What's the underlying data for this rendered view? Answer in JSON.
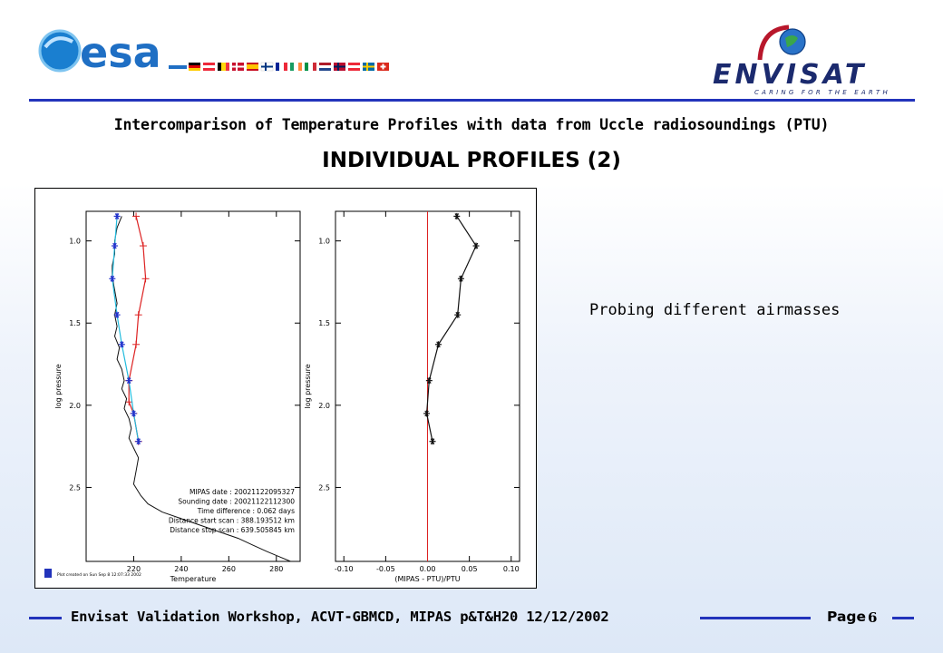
{
  "header": {
    "left_logo": "esa-logo",
    "left_logo_text": "esa",
    "right_logo": "envisat-logo",
    "right_logo_text": "ENVISAT",
    "right_logo_tagline": "CARING FOR THE EARTH"
  },
  "title": "Intercomparison of Temperature Profiles with data from Uccle radiosoundings (PTU)",
  "subtitle": "INDIVIDUAL PROFILES (2)",
  "side_note": "Probing different airmasses",
  "footer": {
    "text": "Envisat Validation Workshop, ACVT-GBMCD,  MIPAS p&T&H20 12/12/2002",
    "page_label": "Page",
    "page_number": "6"
  },
  "colors": {
    "rule": "#2233bb",
    "mipas_profile": "#dd2222",
    "sounding_profile": "#111111",
    "interpolated": "#22bbdd",
    "markers": "#2233cc"
  },
  "chart_data": [
    {
      "type": "line",
      "xlabel": "Temperature",
      "ylabel": "log pressure",
      "xticks": [
        220,
        240,
        260,
        280
      ],
      "yticks": [
        1.0,
        1.5,
        2.0,
        2.5
      ],
      "xlim": [
        200,
        290
      ],
      "ylim": [
        2.95,
        0.82
      ],
      "annotation_lines": [
        "MIPAS date : 20021122095327",
        "Sounding date : 20021122112300",
        "Time difference : 0.062 days",
        "Distance start scan : 388.193512 km",
        "Distance stop scan : 639.505845 km"
      ],
      "credit": "Plot created on Sun Sep 8 12:07:33 2002",
      "series": [
        {
          "color": "#dd2222",
          "marker": "+",
          "x": [
            221,
            224,
            225,
            222,
            221,
            218,
            218,
            220,
            222
          ],
          "y": [
            0.85,
            1.03,
            1.23,
            1.45,
            1.63,
            1.85,
            1.98,
            2.05,
            2.22
          ]
        },
        {
          "color": "#111111",
          "marker": "none",
          "x": [
            215,
            213,
            212,
            212,
            211,
            211,
            212,
            213,
            212,
            213,
            212,
            214,
            213,
            215,
            216,
            215,
            217,
            216,
            218,
            219,
            218,
            220,
            222,
            221,
            220,
            223,
            226,
            232,
            240,
            248,
            256,
            264,
            270,
            276,
            281,
            286
          ],
          "y": [
            0.85,
            0.92,
            1.0,
            1.08,
            1.15,
            1.22,
            1.3,
            1.38,
            1.45,
            1.52,
            1.58,
            1.65,
            1.72,
            1.78,
            1.85,
            1.9,
            1.96,
            2.02,
            2.08,
            2.14,
            2.2,
            2.26,
            2.32,
            2.4,
            2.48,
            2.55,
            2.6,
            2.65,
            2.69,
            2.73,
            2.77,
            2.81,
            2.85,
            2.89,
            2.92,
            2.95
          ]
        },
        {
          "color": "#22bbdd",
          "marker": "*",
          "x": [
            213,
            212,
            211,
            213,
            215,
            218,
            220,
            222
          ],
          "y": [
            0.85,
            1.03,
            1.23,
            1.45,
            1.63,
            1.85,
            2.05,
            2.22
          ]
        }
      ]
    },
    {
      "type": "line",
      "xlabel": "(MIPAS - PTU)/PTU",
      "ylabel": "log pressure",
      "xticks": [
        -0.1,
        -0.05,
        0.0,
        0.05,
        0.1
      ],
      "yticks": [
        1.0,
        1.5,
        2.0,
        2.5
      ],
      "xlim": [
        -0.11,
        0.11
      ],
      "ylim": [
        2.95,
        0.82
      ],
      "zero_line_color": "#dd2222",
      "series": [
        {
          "color": "#111111",
          "marker": "*",
          "x": [
            0.035,
            0.058,
            0.04,
            0.036,
            0.013,
            0.002,
            -0.001,
            0.006
          ],
          "y": [
            0.85,
            1.03,
            1.23,
            1.45,
            1.63,
            1.85,
            2.05,
            2.22
          ]
        }
      ]
    }
  ]
}
